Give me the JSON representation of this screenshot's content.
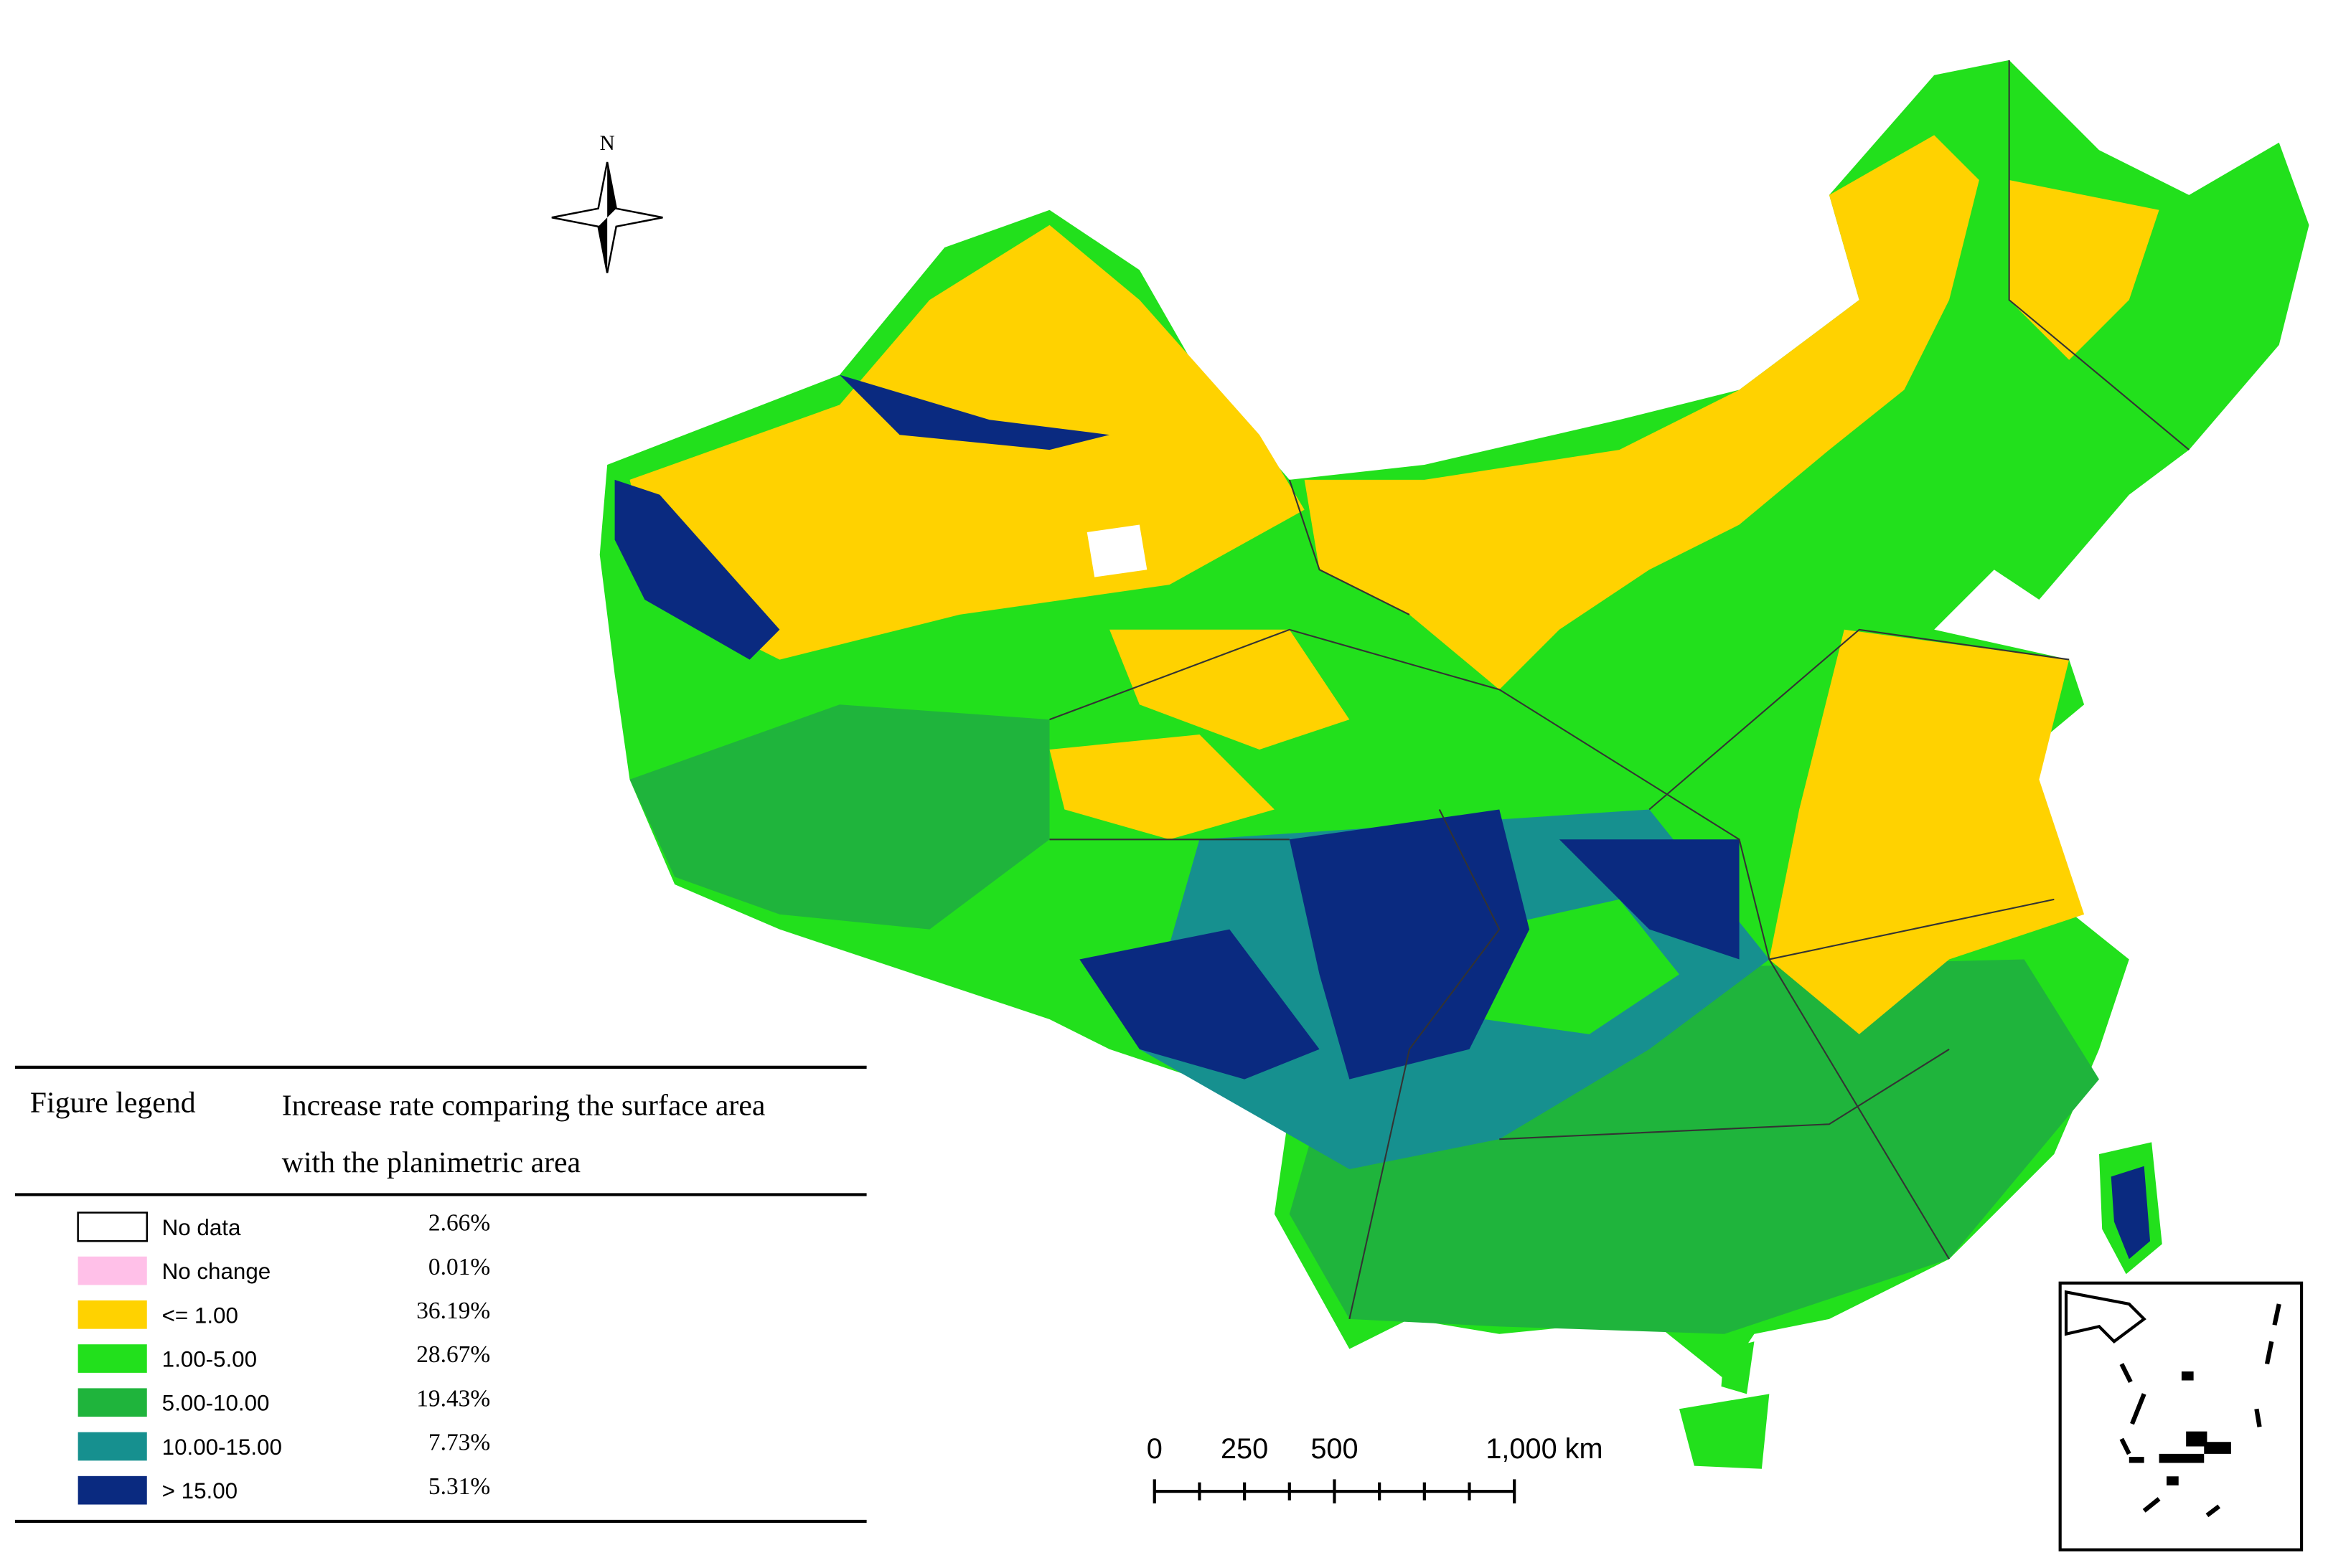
{
  "north_label": "N",
  "legend": {
    "title": "Figure legend",
    "subtitle_lines": [
      "Increase rate comparing the surface area",
      "with the planimetric area"
    ],
    "items": [
      {
        "label": "No data",
        "value": "2.66%",
        "color": "#ffffff"
      },
      {
        "label": "No change",
        "value": "0.01%",
        "color": "#ffc0e8"
      },
      {
        "label": "<= 1.00",
        "value": "36.19%",
        "color": "#ffd200"
      },
      {
        "label": "1.00-5.00",
        "value": "28.67%",
        "color": "#22e01c"
      },
      {
        "label": "5.00-10.00",
        "value": "19.43%",
        "color": "#1fb43c"
      },
      {
        "label": "10.00-15.00",
        "value": "7.73%",
        "color": "#16908f"
      },
      {
        "label": "> 15.00",
        "value": "5.31%",
        "color": "#0a2a80"
      }
    ]
  },
  "scale_bar": {
    "labels": [
      "0",
      "250",
      "500",
      "1,000 km"
    ]
  }
}
